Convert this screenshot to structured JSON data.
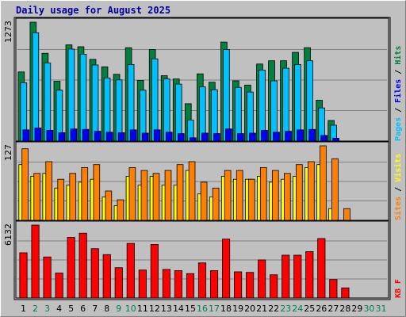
{
  "chart_data": {
    "type": "bar",
    "title": "Daily usage for August 2025",
    "days": [
      1,
      2,
      3,
      4,
      5,
      6,
      7,
      8,
      9,
      10,
      11,
      12,
      13,
      14,
      15,
      16,
      17,
      18,
      19,
      20,
      21,
      22,
      23,
      24,
      25,
      26,
      27,
      28,
      29,
      30,
      31
    ],
    "weekend_days": [
      2,
      3,
      9,
      10,
      16,
      17,
      23,
      24,
      30,
      31
    ],
    "panels": [
      {
        "id": "hits_files_pages",
        "ylabel_max": "1273",
        "ylim": [
          0,
          1273
        ],
        "legend": [
          {
            "text": "Pages",
            "color": "#00C0FF"
          },
          {
            "text": " / ",
            "color": "#000000"
          },
          {
            "text": "Files",
            "color": "#0000FF"
          },
          {
            "text": " / ",
            "color": "#000000"
          },
          {
            "text": "Hits",
            "color": "#008040"
          }
        ],
        "series": [
          {
            "name": "Hits",
            "color": "#008040",
            "values": [
              740,
              1273,
              940,
              640,
              1030,
              1010,
              875,
              795,
              715,
              1000,
              650,
              980,
              700,
              665,
              400,
              720,
              630,
              1060,
              645,
              600,
              825,
              860,
              860,
              950,
              1000,
              437,
              220,
              0,
              0,
              0,
              0
            ]
          },
          {
            "name": "Files",
            "color": "#00C0FF",
            "values": [
              625,
              1160,
              835,
              545,
              985,
              930,
              815,
              675,
              655,
              820,
              545,
              880,
              665,
              610,
              225,
              580,
              550,
              980,
              575,
              525,
              760,
              645,
              780,
              820,
              860,
              355,
              170,
              0,
              0,
              0,
              0
            ]
          },
          {
            "name": "Pages",
            "color": "#0000FF",
            "values": [
              120,
              140,
              115,
              90,
              130,
              125,
              105,
              95,
              90,
              120,
              85,
              120,
              95,
              80,
              35,
              85,
              80,
              130,
              80,
              85,
              115,
              95,
              105,
              120,
              125,
              60,
              30,
              0,
              0,
              0,
              0
            ]
          }
        ]
      },
      {
        "id": "visits_sites",
        "ylabel_max": "127",
        "ylim": [
          0,
          127
        ],
        "legend": [
          {
            "text": "Sites",
            "color": "#FF8000"
          },
          {
            "text": " / ",
            "color": "#000000"
          },
          {
            "text": "Visits",
            "color": "#FFFF00"
          }
        ],
        "series": [
          {
            "name": "Visits",
            "color": "#FFFF00",
            "values": [
              95,
              75,
              80,
              55,
              60,
              65,
              70,
              40,
              25,
              75,
              60,
              75,
              60,
              60,
              85,
              45,
              40,
              75,
              70,
              70,
              75,
              65,
              70,
              75,
              90,
              95,
              20,
              0,
              0,
              0,
              0
            ]
          },
          {
            "name": "Sites",
            "color": "#FF8000",
            "values": [
              122,
              80,
              100,
              70,
              80,
              90,
              95,
              50,
              35,
              90,
              85,
              80,
              85,
              95,
              100,
              65,
              55,
              85,
              85,
              70,
              90,
              85,
              80,
              95,
              100,
              127,
              105,
              20,
              0,
              0,
              0
            ]
          }
        ]
      },
      {
        "id": "kbf",
        "ylabel_max": "6132",
        "ylim": [
          0,
          6132
        ],
        "legend": [
          {
            "text": "KB F",
            "color": "#FF0000"
          }
        ],
        "series": [
          {
            "name": "KB F",
            "color": "#FF0000",
            "values": [
              3800,
              6132,
              3450,
              2100,
              5100,
              5450,
              4150,
              3650,
              2550,
              4590,
              2350,
              4500,
              2400,
              2300,
              2050,
              2950,
              2300,
              4950,
              2200,
              2150,
              3200,
              1950,
              3600,
              3600,
              3900,
              5000,
              1550,
              850,
              0,
              0,
              0
            ]
          }
        ]
      }
    ]
  }
}
